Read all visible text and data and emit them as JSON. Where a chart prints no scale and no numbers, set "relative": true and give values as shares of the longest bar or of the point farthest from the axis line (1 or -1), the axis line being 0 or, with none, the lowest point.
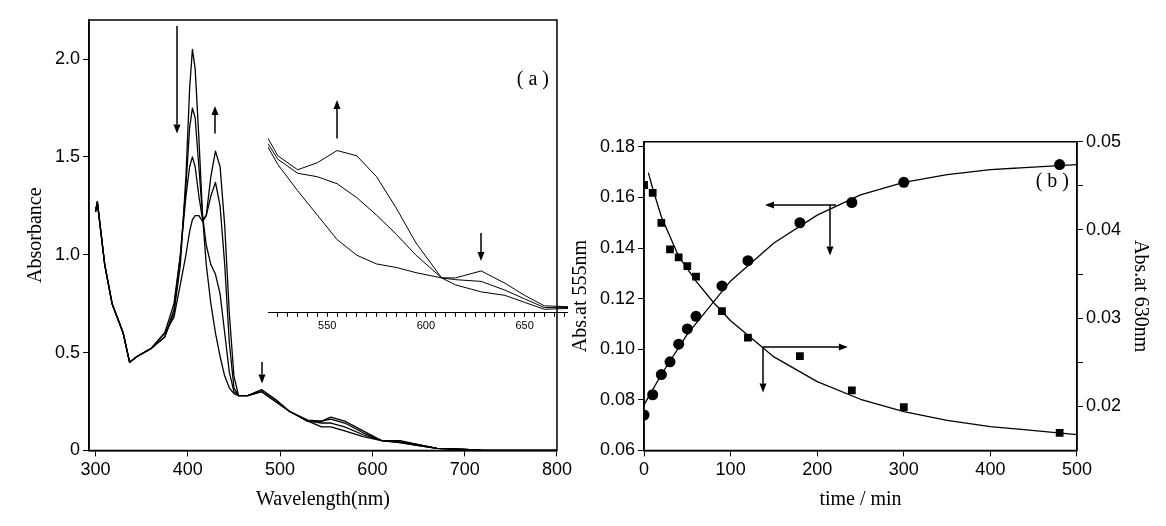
{
  "chart_data": [
    {
      "type": "line",
      "xlabel": "Wavelength(nm)",
      "ylabel": "Absorbance",
      "annotations": [
        "( a )"
      ],
      "grid": false,
      "legend": false,
      "marker": "none",
      "x": [
        300,
        302,
        310,
        318,
        330,
        337,
        345,
        360,
        375,
        385,
        392,
        398,
        402,
        405,
        408,
        412,
        416,
        420,
        425,
        430,
        435,
        440,
        445,
        450,
        455,
        465,
        480,
        495,
        510,
        530,
        545,
        555,
        570,
        590,
        610,
        630,
        650,
        670,
        700,
        720,
        760,
        800
      ],
      "xlim": [
        293,
        800
      ],
      "xticks": [
        300,
        400,
        500,
        600,
        700,
        800
      ],
      "ylim": [
        0,
        2.2
      ],
      "yticks": [
        0,
        0.5,
        {
          "value": 1,
          "label": "1.0"
        },
        1.5,
        {
          "value": 2,
          "label": "2.0"
        }
      ],
      "series": [
        {
          "color": "#000000",
          "values": [
            1.22,
            1.27,
            0.95,
            0.75,
            0.6,
            0.45,
            0.48,
            0.52,
            0.58,
            0.7,
            0.95,
            1.4,
            1.85,
            2.05,
            1.95,
            1.6,
            1.2,
            0.95,
            0.75,
            0.6,
            0.48,
            0.38,
            0.32,
            0.29,
            0.28,
            0.28,
            0.31,
            0.26,
            0.2,
            0.15,
            0.15,
            0.17,
            0.15,
            0.1,
            0.05,
            0.05,
            0.03,
            0.01,
            0.005,
            0,
            0,
            0
          ]
        },
        {
          "color": "#000000",
          "values": [
            1.22,
            1.27,
            0.95,
            0.75,
            0.6,
            0.45,
            0.48,
            0.52,
            0.58,
            0.72,
            1.0,
            1.35,
            1.65,
            1.75,
            1.7,
            1.45,
            1.2,
            1.05,
            0.95,
            0.9,
            0.8,
            0.6,
            0.4,
            0.3,
            0.28,
            0.28,
            0.31,
            0.26,
            0.2,
            0.155,
            0.15,
            0.16,
            0.14,
            0.09,
            0.05,
            0.045,
            0.03,
            0.01,
            0.005,
            0,
            0,
            0
          ]
        },
        {
          "color": "#000000",
          "values": [
            1.22,
            1.27,
            0.95,
            0.75,
            0.6,
            0.45,
            0.48,
            0.52,
            0.6,
            0.75,
            1.0,
            1.3,
            1.45,
            1.5,
            1.45,
            1.3,
            1.18,
            1.2,
            1.3,
            1.37,
            1.25,
            0.95,
            0.55,
            0.32,
            0.28,
            0.28,
            0.3,
            0.25,
            0.2,
            0.15,
            0.14,
            0.14,
            0.12,
            0.08,
            0.05,
            0.04,
            0.025,
            0.01,
            0.005,
            0,
            0,
            0
          ]
        },
        {
          "color": "#000000",
          "values": [
            1.22,
            1.27,
            0.95,
            0.75,
            0.6,
            0.45,
            0.48,
            0.52,
            0.6,
            0.68,
            0.85,
            1.0,
            1.12,
            1.18,
            1.2,
            1.2,
            1.17,
            1.2,
            1.4,
            1.53,
            1.45,
            1.15,
            0.7,
            0.38,
            0.28,
            0.28,
            0.3,
            0.25,
            0.2,
            0.15,
            0.12,
            0.12,
            0.1,
            0.07,
            0.05,
            0.04,
            0.025,
            0.01,
            0.005,
            0,
            0,
            0
          ]
        }
      ]
    },
    {
      "type": "line",
      "relative": true,
      "tick_labels": "x",
      "grid": false,
      "legend": false,
      "marker": "none",
      "x": [
        520,
        525,
        535,
        545,
        555,
        565,
        575,
        585,
        595,
        608,
        615,
        628,
        640,
        650,
        660,
        672
      ],
      "xlim": [
        520,
        672
      ],
      "xticks": [
        {
          "value": 525,
          "label": null
        },
        {
          "value": 530,
          "label": null
        },
        {
          "value": 535,
          "label": null
        },
        {
          "value": 540,
          "label": null
        },
        {
          "value": 545,
          "label": null
        },
        550,
        {
          "value": 555,
          "label": null
        },
        {
          "value": 560,
          "label": null
        },
        {
          "value": 565,
          "label": null
        },
        {
          "value": 570,
          "label": null
        },
        {
          "value": 575,
          "label": null
        },
        {
          "value": 580,
          "label": null
        },
        {
          "value": 585,
          "label": null
        },
        {
          "value": 590,
          "label": null
        },
        {
          "value": 595,
          "label": null
        },
        600,
        {
          "value": 605,
          "label": null
        },
        {
          "value": 610,
          "label": null
        },
        {
          "value": 615,
          "label": null
        },
        {
          "value": 620,
          "label": null
        },
        {
          "value": 625,
          "label": null
        },
        {
          "value": 630,
          "label": null
        },
        {
          "value": 635,
          "label": null
        },
        {
          "value": 640,
          "label": null
        },
        {
          "value": 645,
          "label": null
        },
        650,
        {
          "value": 655,
          "label": null
        },
        {
          "value": 660,
          "label": null
        },
        {
          "value": 665,
          "label": null
        },
        {
          "value": 670,
          "label": null
        }
      ],
      "series": [
        {
          "color": "#000000",
          "values": [
            1.0,
            0.9,
            0.82,
            0.86,
            0.93,
            0.9,
            0.78,
            0.6,
            0.4,
            0.2,
            0.2,
            0.24,
            0.17,
            0.1,
            0.04,
            0.035
          ]
        },
        {
          "color": "#000000",
          "values": [
            0.97,
            0.88,
            0.8,
            0.78,
            0.74,
            0.66,
            0.56,
            0.45,
            0.33,
            0.2,
            0.19,
            0.18,
            0.13,
            0.08,
            0.03,
            0.03
          ]
        },
        {
          "color": "#000000",
          "values": [
            0.95,
            0.85,
            0.7,
            0.56,
            0.42,
            0.33,
            0.28,
            0.26,
            0.23,
            0.2,
            0.16,
            0.12,
            0.1,
            0.06,
            0.02,
            0.025
          ]
        }
      ]
    },
    {
      "type": "scatter",
      "xlabel": "time / min",
      "ylabel": "Abs.at 555nm",
      "y2label": "Abs.at 630nm",
      "annotations": [
        "( b )"
      ],
      "grid": false,
      "legend": false,
      "xlim": [
        0,
        500
      ],
      "xticks": [
        0,
        100,
        200,
        300,
        400,
        500
      ],
      "ylim": [
        0.06,
        0.182
      ],
      "yticks": [
        0.06,
        0.08,
        {
          "value": 0.1,
          "label": "0.10"
        },
        0.12,
        0.14,
        0.16,
        0.18
      ],
      "y2lim": [
        0.015,
        0.05
      ],
      "y2ticks": [
        0.02,
        {
          "value": 0.025,
          "label": null
        },
        0.03,
        {
          "value": 0.035,
          "label": null
        },
        0.04,
        {
          "value": 0.045,
          "label": null
        },
        0.05
      ],
      "series": [
        {
          "type": "scatter",
          "marker": "circle",
          "color": "#000000",
          "x": [
            0,
            10,
            20,
            30,
            40,
            50,
            60,
            90,
            120,
            180,
            240,
            300,
            480
          ],
          "values": [
            0.074,
            0.082,
            0.09,
            0.095,
            0.102,
            0.108,
            0.113,
            0.125,
            0.135,
            0.15,
            0.158,
            0.166,
            0.173
          ]
        },
        {
          "type": "line",
          "marker": "none",
          "color": "#000000",
          "x": [
            0,
            20,
            50,
            100,
            150,
            200,
            250,
            300,
            350,
            400,
            500
          ],
          "values": [
            0.078,
            0.09,
            0.106,
            0.127,
            0.142,
            0.153,
            0.161,
            0.166,
            0.169,
            0.171,
            0.173
          ]
        },
        {
          "type": "scatter",
          "marker": "square",
          "axis": "y2",
          "color": "#000000",
          "x": [
            0,
            10,
            20,
            30,
            40,
            50,
            60,
            90,
            120,
            180,
            240,
            300,
            480
          ],
          "values": [
            0.0451,
            0.0442,
            0.0408,
            0.0378,
            0.0369,
            0.0359,
            0.0347,
            0.0308,
            0.0278,
            0.0257,
            0.0218,
            0.0199,
            0.017
          ]
        },
        {
          "type": "line",
          "marker": "none",
          "axis": "y2",
          "color": "#000000",
          "x": [
            5,
            10,
            20,
            40,
            60,
            80,
            100,
            150,
            200,
            250,
            300,
            350,
            400,
            500
          ],
          "values": [
            0.0465,
            0.0447,
            0.0415,
            0.037,
            0.0342,
            0.0318,
            0.0297,
            0.0256,
            0.0228,
            0.0208,
            0.0194,
            0.0184,
            0.0177,
            0.0168
          ]
        }
      ]
    }
  ]
}
